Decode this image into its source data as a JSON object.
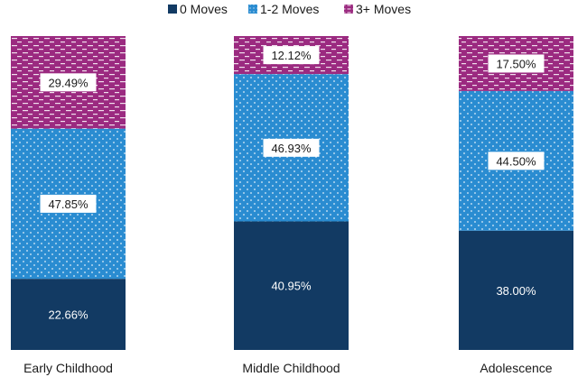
{
  "chart_data": {
    "type": "bar",
    "stacked": true,
    "percent": true,
    "categories": [
      "Early Childhood",
      "Middle Childhood",
      "Adolescence"
    ],
    "series": [
      {
        "name": "0 Moves",
        "values": [
          22.66,
          40.95,
          38.0
        ],
        "labels": [
          "22.66%",
          "40.95%",
          "38.00%"
        ],
        "color": "#123a63",
        "pattern": "solid"
      },
      {
        "name": "1-2 Moves",
        "values": [
          47.85,
          46.93,
          44.5
        ],
        "labels": [
          "47.85%",
          "46.93%",
          "44.50%"
        ],
        "color": "#2a8cd1",
        "pattern": "dots"
      },
      {
        "name": "3+ Moves",
        "values": [
          29.49,
          12.12,
          17.5
        ],
        "labels": [
          "29.49%",
          "12.12%",
          "17.50%"
        ],
        "color": "#9b2a80",
        "pattern": "dashes"
      }
    ],
    "ylim": [
      0,
      100
    ],
    "legend_position": "top-center",
    "grid": false
  }
}
